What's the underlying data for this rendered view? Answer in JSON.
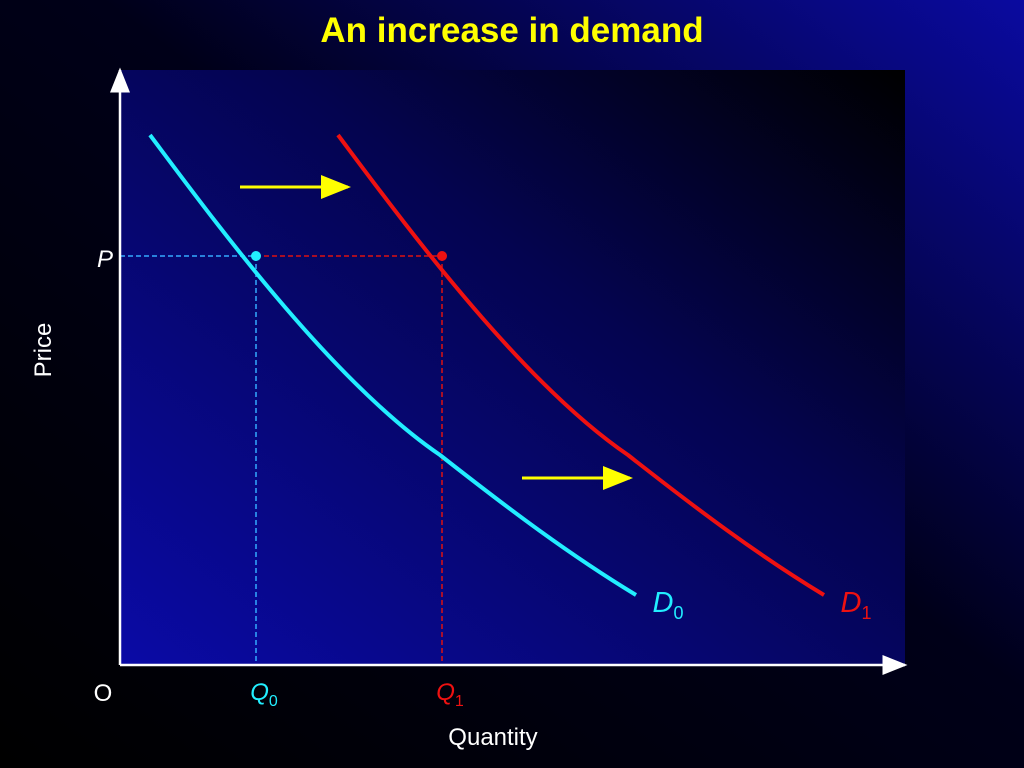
{
  "header": {
    "title": "An increase in demand"
  },
  "axes": {
    "y_label": "Price",
    "x_label": "Quantity",
    "origin": "O"
  },
  "labels": {
    "price": "P",
    "q0": {
      "main": "Q",
      "sub": "0"
    },
    "q1": {
      "main": "Q",
      "sub": "1"
    },
    "d0": {
      "main": "D",
      "sub": "0"
    },
    "d1": {
      "main": "D",
      "sub": "1"
    }
  }
}
